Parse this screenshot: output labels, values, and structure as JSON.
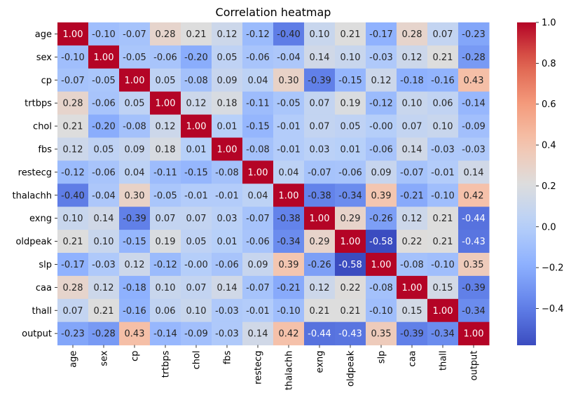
{
  "chart_data": {
    "type": "heatmap",
    "title": "Correlation heatmap",
    "xlabel": "",
    "ylabel": "",
    "colormap": "coolwarm",
    "vmin": -0.58,
    "vmax": 1.0,
    "labels": [
      "age",
      "sex",
      "cp",
      "trtbps",
      "chol",
      "fbs",
      "restecg",
      "thalachh",
      "exng",
      "oldpeak",
      "slp",
      "caa",
      "thall",
      "output"
    ],
    "matrix": [
      [
        1.0,
        -0.1,
        -0.07,
        0.28,
        0.21,
        0.12,
        -0.12,
        -0.4,
        0.1,
        0.21,
        -0.17,
        0.28,
        0.07,
        -0.23
      ],
      [
        -0.1,
        1.0,
        -0.05,
        -0.06,
        -0.2,
        0.05,
        -0.06,
        -0.04,
        0.14,
        0.1,
        -0.03,
        0.12,
        0.21,
        -0.28
      ],
      [
        -0.07,
        -0.05,
        1.0,
        0.05,
        -0.08,
        0.09,
        0.04,
        0.3,
        -0.39,
        -0.15,
        0.12,
        -0.18,
        -0.16,
        0.43
      ],
      [
        0.28,
        -0.06,
        0.05,
        1.0,
        0.12,
        0.18,
        -0.11,
        -0.05,
        0.07,
        0.19,
        -0.12,
        0.1,
        0.06,
        -0.14
      ],
      [
        0.21,
        -0.2,
        -0.08,
        0.12,
        1.0,
        0.01,
        -0.15,
        -0.01,
        0.07,
        0.05,
        -0.0,
        0.07,
        0.1,
        -0.09
      ],
      [
        0.12,
        0.05,
        0.09,
        0.18,
        0.01,
        1.0,
        -0.08,
        -0.01,
        0.03,
        0.01,
        -0.06,
        0.14,
        -0.03,
        -0.03
      ],
      [
        -0.12,
        -0.06,
        0.04,
        -0.11,
        -0.15,
        -0.08,
        1.0,
        0.04,
        -0.07,
        -0.06,
        0.09,
        -0.07,
        -0.01,
        0.14
      ],
      [
        -0.4,
        -0.04,
        0.3,
        -0.05,
        -0.01,
        -0.01,
        0.04,
        1.0,
        -0.38,
        -0.34,
        0.39,
        -0.21,
        -0.1,
        0.42
      ],
      [
        0.1,
        0.14,
        -0.39,
        0.07,
        0.07,
        0.03,
        -0.07,
        -0.38,
        1.0,
        0.29,
        -0.26,
        0.12,
        0.21,
        -0.44
      ],
      [
        0.21,
        0.1,
        -0.15,
        0.19,
        0.05,
        0.01,
        -0.06,
        -0.34,
        0.29,
        1.0,
        -0.58,
        0.22,
        0.21,
        -0.43
      ],
      [
        -0.17,
        -0.03,
        0.12,
        -0.12,
        -0.0,
        -0.06,
        0.09,
        0.39,
        -0.26,
        -0.58,
        1.0,
        -0.08,
        -0.1,
        0.35
      ],
      [
        0.28,
        0.12,
        -0.18,
        0.1,
        0.07,
        0.14,
        -0.07,
        -0.21,
        0.12,
        0.22,
        -0.08,
        1.0,
        0.15,
        -0.39
      ],
      [
        0.07,
        0.21,
        -0.16,
        0.06,
        0.1,
        -0.03,
        -0.01,
        -0.1,
        0.21,
        0.21,
        -0.1,
        0.15,
        1.0,
        -0.34
      ],
      [
        -0.23,
        -0.28,
        0.43,
        -0.14,
        -0.09,
        -0.03,
        0.14,
        0.42,
        -0.44,
        -0.43,
        0.35,
        -0.39,
        -0.34,
        1.0
      ]
    ],
    "colorbar_ticks": [
      1.0,
      0.8,
      0.6,
      0.4,
      0.2,
      0.0,
      -0.2,
      -0.4
    ],
    "colorbar_tick_labels": [
      "1.0",
      "0.8",
      "0.6",
      "0.4",
      "0.2",
      "0.0",
      "−0.2",
      "−0.4"
    ]
  }
}
